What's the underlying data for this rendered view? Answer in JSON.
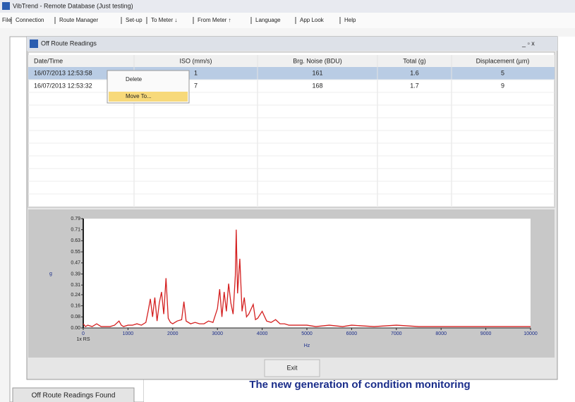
{
  "window": {
    "title": "VibTrend - Remote Database (Just testing)"
  },
  "menu": [
    "File",
    "Connection",
    "Route Manager",
    "Set-up",
    "To Meter ↓",
    "From Meter ↑",
    "Language",
    "App Look",
    "Help"
  ],
  "dialog": {
    "title": "Off Route Readings",
    "exit": "Exit"
  },
  "table": {
    "columns": [
      "Date/Time",
      "ISO (mm/s)",
      "Brg. Noise (BDU)",
      "Total (g)",
      "Displacement (µm)"
    ],
    "rows": [
      [
        "16/07/2013 12:53:58",
        "1",
        "161",
        "1.6",
        "5"
      ],
      [
        "16/07/2013 12:53:32",
        "7",
        "168",
        "1.7",
        "9"
      ]
    ]
  },
  "context_menu": [
    "Delete",
    "Move To..."
  ],
  "chart_data": {
    "type": "line",
    "y_label": "g",
    "x_label": "Hz",
    "annotation": "1x RS",
    "color": "#d42020",
    "xlim": [
      0,
      10000
    ],
    "ylim": [
      0,
      0.79
    ],
    "xticks": [
      0,
      1000,
      2000,
      3000,
      4000,
      5000,
      6000,
      7000,
      8000,
      9000,
      10000
    ],
    "yticks": [
      {
        "value": 0,
        "label": "0.00"
      },
      0.08,
      0.16,
      0.24,
      0.31,
      0.39,
      0.47,
      0.55,
      0.63,
      0.71,
      0.79
    ],
    "x": [
      0,
      50,
      100,
      200,
      300,
      400,
      500,
      600,
      700,
      800,
      850,
      900,
      1000,
      1100,
      1200,
      1300,
      1400,
      1450,
      1500,
      1550,
      1600,
      1650,
      1700,
      1750,
      1800,
      1850,
      1900,
      1950,
      2000,
      2100,
      2200,
      2250,
      2300,
      2400,
      2500,
      2600,
      2700,
      2800,
      2900,
      3000,
      3050,
      3100,
      3150,
      3200,
      3250,
      3300,
      3350,
      3400,
      3420,
      3450,
      3500,
      3550,
      3600,
      3650,
      3700,
      3800,
      3850,
      3900,
      4000,
      4100,
      4200,
      4300,
      4400,
      4500,
      4600,
      4800,
      5000,
      5200,
      5500,
      5800,
      6000,
      6500,
      7000,
      7500,
      8000,
      8500,
      9000,
      9500,
      10000
    ],
    "values": [
      0.03,
      0.01,
      0.02,
      0.01,
      0.03,
      0.01,
      0.01,
      0.01,
      0.02,
      0.05,
      0.02,
      0.01,
      0.02,
      0.02,
      0.03,
      0.02,
      0.04,
      0.12,
      0.21,
      0.08,
      0.22,
      0.05,
      0.18,
      0.26,
      0.1,
      0.36,
      0.07,
      0.04,
      0.03,
      0.05,
      0.06,
      0.19,
      0.05,
      0.03,
      0.04,
      0.03,
      0.03,
      0.05,
      0.04,
      0.14,
      0.28,
      0.08,
      0.26,
      0.12,
      0.32,
      0.18,
      0.1,
      0.38,
      0.71,
      0.25,
      0.5,
      0.12,
      0.22,
      0.08,
      0.1,
      0.17,
      0.06,
      0.07,
      0.12,
      0.05,
      0.04,
      0.06,
      0.03,
      0.03,
      0.02,
      0.02,
      0.02,
      0.01,
      0.02,
      0.01,
      0.02,
      0.01,
      0.02,
      0.01,
      0.01,
      0.01,
      0.01,
      0.01,
      0.01
    ]
  },
  "left_button": "Off Route Readings Found",
  "banner": "The new generation of condition monitoring"
}
